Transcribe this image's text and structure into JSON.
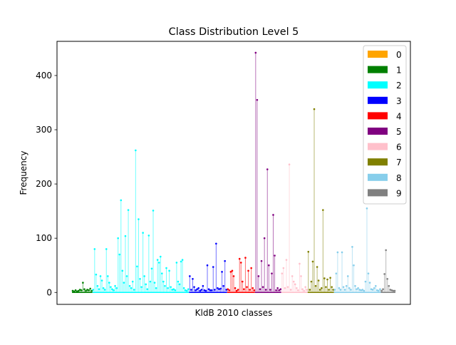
{
  "chart_data": {
    "type": "stem",
    "title": "Class Distribution Level 5",
    "xlabel": "KldB 2010 classes",
    "ylabel": "Frequency",
    "ylim": [
      -22,
      463
    ],
    "yticks": [
      0,
      100,
      200,
      300,
      400
    ],
    "xticks": [],
    "grid": false,
    "legend": {
      "placement": "top-right"
    },
    "series": [
      {
        "name": "0",
        "color": "#FFA500",
        "values": []
      },
      {
        "name": "1",
        "color": "#008000",
        "values": [
          3,
          2,
          4,
          2,
          3,
          5,
          4,
          18,
          6,
          3,
          5,
          4,
          7,
          3
        ]
      },
      {
        "name": "2",
        "color": "#00FFFF",
        "values": [
          5,
          80,
          33,
          12,
          6,
          30,
          22,
          8,
          5,
          80,
          30,
          18,
          10,
          6,
          4,
          12,
          8,
          100,
          70,
          170,
          40,
          18,
          104,
          30,
          152,
          12,
          8,
          20,
          5,
          262,
          48,
          135,
          25,
          10,
          110,
          30,
          15,
          6,
          105,
          20,
          44,
          151,
          18,
          8,
          60,
          55,
          66,
          35,
          20,
          12,
          45,
          8,
          40,
          10,
          5,
          6,
          4,
          55,
          20,
          15,
          57,
          60,
          8,
          4,
          3,
          6
        ]
      },
      {
        "name": "3",
        "color": "#0000FF",
        "values": [
          30,
          5,
          25,
          10,
          4,
          6,
          8,
          3,
          5,
          12,
          4,
          3,
          50,
          6,
          4,
          4,
          47,
          5,
          90,
          8,
          6,
          7,
          38,
          12,
          58,
          5
        ]
      },
      {
        "name": "4",
        "color": "#FF0000",
        "values": [
          6,
          4,
          38,
          40,
          30,
          8,
          3,
          5,
          62,
          55,
          20,
          6,
          64,
          10,
          40,
          5,
          45,
          8,
          4
        ]
      },
      {
        "name": "5",
        "color": "#800080",
        "values": [
          442,
          355,
          30,
          6,
          58,
          10,
          100,
          5,
          227,
          50,
          5,
          35,
          143,
          68,
          4,
          8,
          4,
          6
        ]
      },
      {
        "name": "6",
        "color": "#FFC0CB",
        "values": [
          35,
          45,
          8,
          60,
          10,
          236,
          5,
          30,
          20,
          15,
          8,
          4,
          53,
          30,
          6,
          3,
          10,
          5
        ]
      },
      {
        "name": "7",
        "color": "#808000",
        "values": [
          75,
          5,
          20,
          57,
          338,
          12,
          47,
          22,
          5,
          8,
          152,
          26,
          10,
          24,
          5,
          27,
          10,
          5
        ]
      },
      {
        "name": "8",
        "color": "#87CEEB",
        "values": [
          5,
          35,
          74,
          8,
          5,
          74,
          10,
          5,
          12,
          30,
          8,
          5,
          84,
          50,
          12,
          6,
          8,
          5,
          4,
          5,
          3,
          20,
          155,
          35,
          18,
          6,
          5,
          8,
          12,
          4,
          3,
          6
        ]
      },
      {
        "name": "9",
        "color": "#808080",
        "values": [
          3,
          6,
          34,
          78,
          25,
          12,
          5,
          4,
          3,
          3
        ]
      }
    ]
  }
}
